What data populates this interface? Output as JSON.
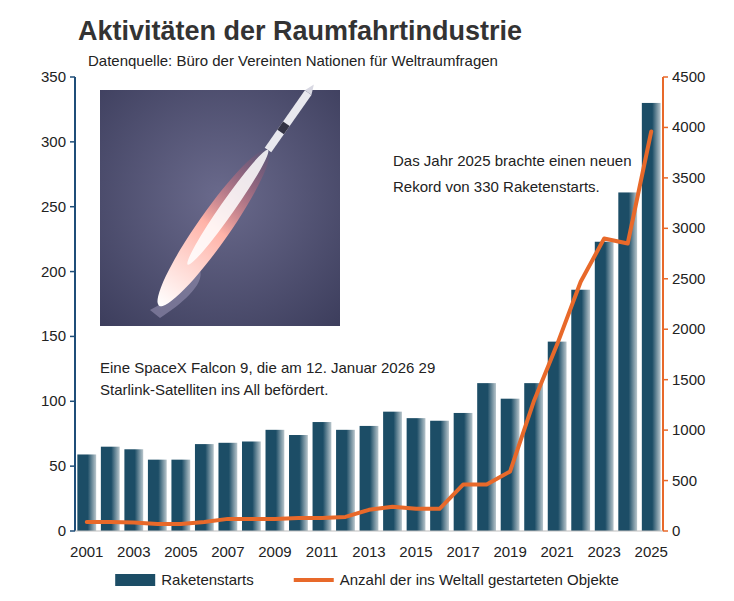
{
  "chart_data": {
    "type": "bar",
    "title": "Aktivitäten der Raumfahrtindustrie",
    "subtitle": "Datenquelle: Büro der Vereinten Nationen für Weltraumfragen",
    "annotations": [
      "Das Jahr 2025 brachte einen neuen Rekord von 330 Raketenstarts.",
      "Eine SpaceX Falcon 9, die am 12. Januar 2026 29 Starlink-Satelliten ins All befördert."
    ],
    "categories": [
      "2001",
      null,
      "2003",
      null,
      "2005",
      null,
      "2007",
      null,
      "2009",
      null,
      "2011",
      null,
      "2013",
      null,
      "2015",
      null,
      "2017",
      null,
      "2019",
      null,
      "2021",
      null,
      "2023",
      null,
      "2025"
    ],
    "series": [
      {
        "name": "Raketenstarts",
        "type": "bar",
        "color": "#1c4d66",
        "values": [
          59,
          65,
          63,
          55,
          55,
          67,
          68,
          69,
          78,
          74,
          84,
          78,
          81,
          92,
          87,
          85,
          91,
          114,
          102,
          114,
          146,
          186,
          223,
          261,
          330
        ]
      },
      {
        "name": "Anzahl der ins Weltall gestarteten Objekte",
        "type": "line",
        "color": "#e8692a",
        "axis": "y2",
        "values": [
          90,
          90,
          85,
          70,
          70,
          90,
          120,
          120,
          120,
          130,
          130,
          140,
          210,
          240,
          220,
          220,
          460,
          460,
          590,
          1280,
          1850,
          2470,
          2900,
          2850,
          3960
        ]
      }
    ],
    "ylim": [
      0,
      350
    ],
    "yticks": [
      0,
      50,
      100,
      150,
      200,
      250,
      300,
      350
    ],
    "y2lim": [
      0,
      4500
    ],
    "y2ticks": [
      0,
      500,
      1000,
      1500,
      2000,
      2500,
      3000,
      3500,
      4000,
      4500
    ],
    "grid": false,
    "legend": "bottom"
  }
}
